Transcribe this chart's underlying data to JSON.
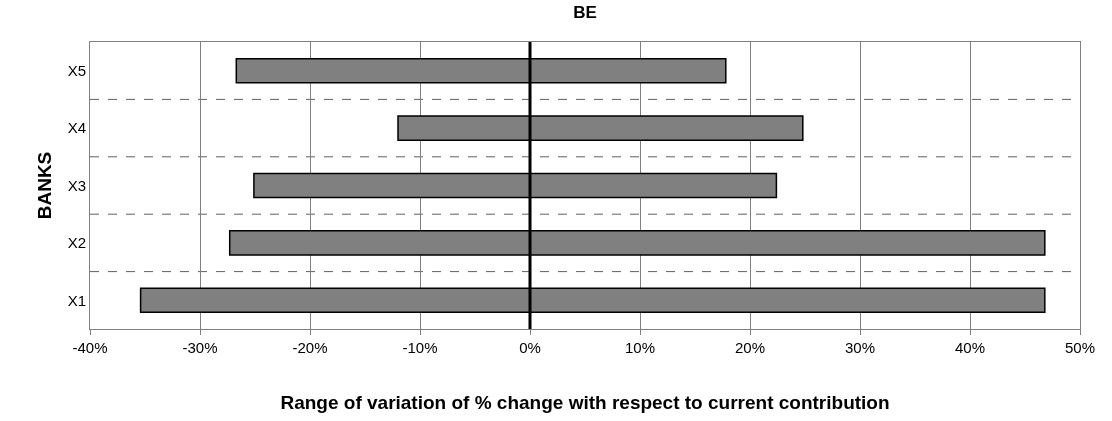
{
  "chart_data": {
    "type": "bar",
    "orientation": "horizontal",
    "stacked": true,
    "title": "BE",
    "xlabel": "Range of variation of % change with respect to current contribution",
    "ylabel": "BANKS",
    "categories": [
      "X5",
      "X4",
      "X3",
      "X2",
      "X1"
    ],
    "series": [
      {
        "color": "#808080",
        "values": [
          -26.7,
          -12.0,
          -25.1,
          -27.3,
          -35.4
        ]
      },
      {
        "color": "#808080",
        "values": [
          17.8,
          24.8,
          22.4,
          46.8,
          46.8
        ]
      }
    ],
    "xlim": [
      -40,
      50
    ],
    "xticks": [
      {
        "value": -40,
        "label": "-40%"
      },
      {
        "value": -30,
        "label": "-30%"
      },
      {
        "value": -20,
        "label": "-20%"
      },
      {
        "value": -10,
        "label": "-10%"
      },
      {
        "value": 0,
        "label": "0%"
      },
      {
        "value": 10,
        "label": "10%"
      },
      {
        "value": 20,
        "label": "20%"
      },
      {
        "value": 30,
        "label": "30%"
      },
      {
        "value": 40,
        "label": "40%"
      },
      {
        "value": 50,
        "label": "50%"
      }
    ],
    "ref_lines": [
      {
        "axis": "x",
        "value": 0,
        "color": "#000000"
      }
    ],
    "grid": true
  }
}
